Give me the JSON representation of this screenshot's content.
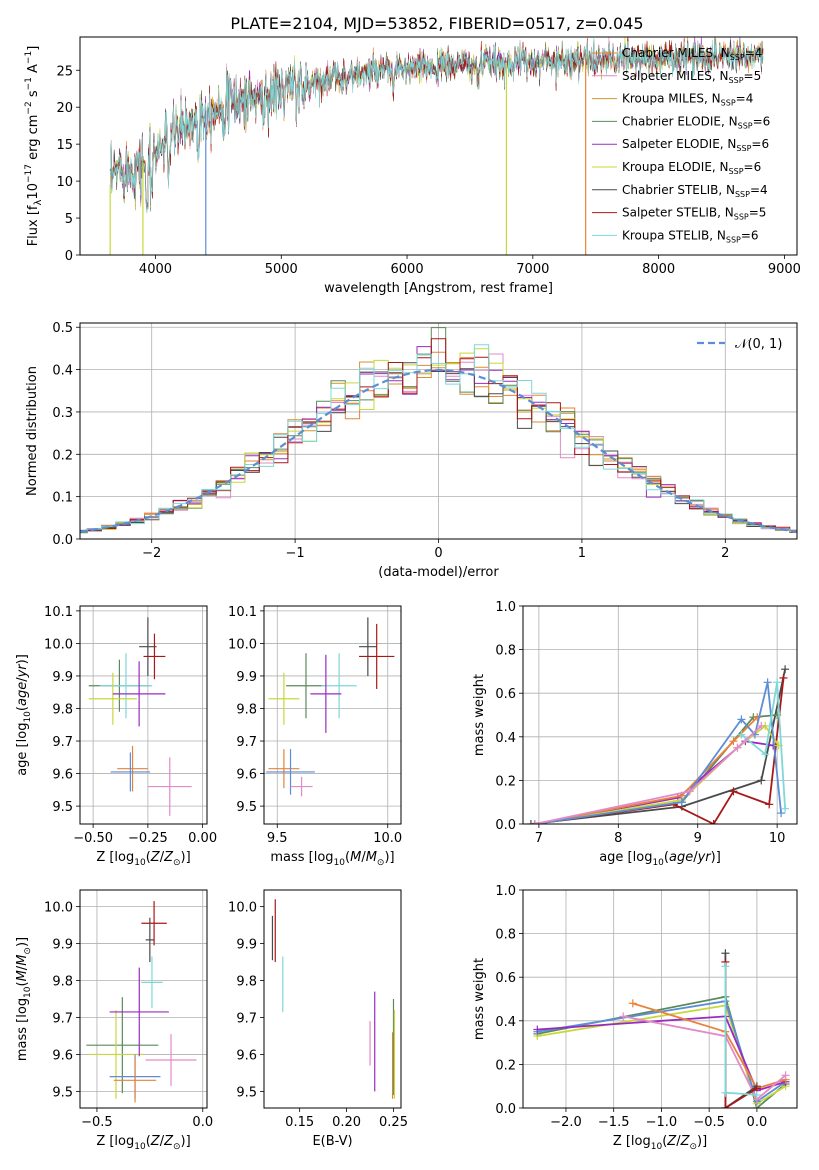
{
  "figure": {
    "title": "PLATE=2104, MJD=53852, FIBERID=0517, z=0.045"
  },
  "chart_data": [
    {
      "id": "spectrum",
      "type": "line",
      "xlabel": "wavelength [Angstrom, rest frame]",
      "ylabel_parts": [
        "Flux [f",
        "λ",
        "10",
        "−17",
        " erg cm",
        "−2",
        " s",
        "−1",
        " A",
        "−1",
        "]"
      ],
      "xlim": [
        3400,
        9100
      ],
      "ylim": [
        0,
        29.5
      ],
      "xticks": [
        4000,
        5000,
        6000,
        7000,
        8000,
        9000
      ],
      "yticks": [
        0,
        5,
        10,
        15,
        20,
        25
      ],
      "grid": false,
      "legend_position": "top-right",
      "data_range": [
        3640,
        8830
      ],
      "continuum": [
        [
          3640,
          9.5
        ],
        [
          3700,
          12
        ],
        [
          3800,
          11.5
        ],
        [
          3900,
          12.5
        ],
        [
          4000,
          14
        ],
        [
          4100,
          15.5
        ],
        [
          4200,
          17
        ],
        [
          4400,
          19.5
        ],
        [
          4700,
          21
        ],
        [
          5000,
          22.3
        ],
        [
          5300,
          23.6
        ],
        [
          5600,
          24.5
        ],
        [
          6000,
          25.2
        ],
        [
          6400,
          25.7
        ],
        [
          6800,
          26
        ],
        [
          7200,
          26.3
        ],
        [
          7600,
          26.5
        ],
        [
          8000,
          26.7
        ],
        [
          8400,
          26.9
        ],
        [
          8830,
          27.2
        ]
      ],
      "series": [
        {
          "name": "Chabrier MILES, N",
          "sub": "SSP",
          "suffix": "=4",
          "color": "#e8823a"
        },
        {
          "name": "Salpeter MILES, N",
          "sub": "SSP",
          "suffix": "=5",
          "color": "#e38ac8"
        },
        {
          "name": "Kroupa MILES, N",
          "sub": "SSP",
          "suffix": "=4",
          "color": "#d4922b"
        },
        {
          "name": "Chabrier ELODIE, N",
          "sub": "SSP",
          "suffix": "=6",
          "color": "#5a8a5a"
        },
        {
          "name": "Salpeter ELODIE, N",
          "sub": "SSP",
          "suffix": "=6",
          "color": "#9a2bc0"
        },
        {
          "name": "Kroupa ELODIE, N",
          "sub": "SSP",
          "suffix": "=6",
          "color": "#c8d83a"
        },
        {
          "name": "Chabrier STELIB, N",
          "sub": "SSP",
          "suffix": "=4",
          "color": "#4a4a4a"
        },
        {
          "name": "Salpeter STELIB, N",
          "sub": "SSP",
          "suffix": "=5",
          "color": "#a81818"
        },
        {
          "name": "Kroupa STELIB, N",
          "sub": "SSP",
          "suffix": "=6",
          "color": "#7fd8d8"
        }
      ]
    },
    {
      "id": "residuals",
      "type": "histogram",
      "xlabel": "(data-model)/error",
      "ylabel": "Normed distribution",
      "xlim": [
        -2.5,
        2.5
      ],
      "ylim": [
        0,
        0.51
      ],
      "xticks": [
        -2,
        -1,
        0,
        1,
        2
      ],
      "yticks": [
        0.0,
        0.1,
        0.2,
        0.3,
        0.4,
        0.5
      ],
      "grid": true,
      "legend_position": "top-right",
      "legend_label": "𝒩(0, 1)",
      "normal_color": "#5b8ed6"
    },
    {
      "id": "age_vs_Z",
      "type": "errorbar",
      "xlabel": "Z [log10(Z/Z⊙)]",
      "ylabel": "age  [log10(age/yr)]",
      "xlim": [
        -0.56,
        0.02
      ],
      "ylim": [
        9.445,
        10.115
      ],
      "xticks": [
        -0.5,
        -0.25,
        0.0
      ],
      "yticks": [
        9.5,
        9.6,
        9.7,
        9.8,
        9.9,
        10.0,
        10.1
      ],
      "grid": true,
      "points": [
        {
          "x": -0.25,
          "y": 9.99,
          "xerr": 0.04,
          "yerr": 0.09,
          "color": "#4a4a4a"
        },
        {
          "x": -0.22,
          "y": 9.96,
          "xerr": 0.05,
          "yerr": 0.07,
          "color": "#a81818"
        },
        {
          "x": -0.38,
          "y": 9.87,
          "xerr": 0.14,
          "yerr": 0.08,
          "color": "#5a8a5a"
        },
        {
          "x": -0.35,
          "y": 9.87,
          "xerr": 0.12,
          "yerr": 0.1,
          "color": "#7fd8d8"
        },
        {
          "x": -0.41,
          "y": 9.83,
          "xerr": 0.11,
          "yerr": 0.08,
          "color": "#c8d83a"
        },
        {
          "x": -0.29,
          "y": 9.845,
          "xerr": 0.12,
          "yerr": 0.1,
          "color": "#9a2bc0"
        },
        {
          "x": -0.32,
          "y": 9.615,
          "xerr": 0.07,
          "yerr": 0.07,
          "color": "#e8823a"
        },
        {
          "x": -0.33,
          "y": 9.605,
          "xerr": 0.09,
          "yerr": 0.06,
          "color": "#5b8ed6"
        },
        {
          "x": -0.15,
          "y": 9.56,
          "xerr": 0.1,
          "yerr": 0.09,
          "color": "#e38ac8"
        }
      ]
    },
    {
      "id": "age_vs_mass",
      "type": "errorbar",
      "xlabel": "mass [log10(M/M⊙)]",
      "ylabel": "",
      "xlim": [
        9.44,
        10.06
      ],
      "ylim": [
        9.445,
        10.115
      ],
      "xticks": [
        9.5,
        10.0
      ],
      "yticks": [
        9.5,
        9.6,
        9.7,
        9.8,
        9.9,
        10.0,
        10.1
      ],
      "grid": true,
      "points": [
        {
          "x": 9.91,
          "y": 9.99,
          "xerr": 0.04,
          "yerr": 0.09,
          "color": "#4a4a4a"
        },
        {
          "x": 9.95,
          "y": 9.96,
          "xerr": 0.08,
          "yerr": 0.1,
          "color": "#a81818"
        },
        {
          "x": 9.63,
          "y": 9.87,
          "xerr": 0.09,
          "yerr": 0.1,
          "color": "#5a8a5a"
        },
        {
          "x": 9.78,
          "y": 9.87,
          "xerr": 0.08,
          "yerr": 0.1,
          "color": "#7fd8d8"
        },
        {
          "x": 9.53,
          "y": 9.83,
          "xerr": 0.07,
          "yerr": 0.08,
          "color": "#c8d83a"
        },
        {
          "x": 9.72,
          "y": 9.845,
          "xerr": 0.07,
          "yerr": 0.12,
          "color": "#9a2bc0"
        },
        {
          "x": 9.53,
          "y": 9.615,
          "xerr": 0.07,
          "yerr": 0.06,
          "color": "#e8823a"
        },
        {
          "x": 9.56,
          "y": 9.605,
          "xerr": 0.11,
          "yerr": 0.07,
          "color": "#5b8ed6"
        },
        {
          "x": 9.61,
          "y": 9.56,
          "xerr": 0.05,
          "yerr": 0.03,
          "color": "#e38ac8"
        }
      ]
    },
    {
      "id": "weight_vs_age",
      "type": "line",
      "xlabel": "age  [log10(age/yr)]",
      "ylabel": "mass weight",
      "xlim": [
        6.8,
        10.25
      ],
      "ylim": [
        0,
        1
      ],
      "xticks": [
        7,
        8,
        9,
        10
      ],
      "yticks": [
        0.0,
        0.2,
        0.4,
        0.6,
        0.8,
        1.0
      ],
      "grid": true,
      "series": [
        {
          "color": "#4a4a4a",
          "x": [
            6.9,
            8.8,
            9.8,
            10.1
          ],
          "y": [
            0.0,
            0.08,
            0.2,
            0.71
          ]
        },
        {
          "color": "#a81818",
          "x": [
            6.95,
            8.7,
            9.2,
            9.45,
            9.9,
            10.08
          ],
          "y": [
            0.0,
            0.09,
            0.0,
            0.15,
            0.09,
            0.67
          ]
        },
        {
          "color": "#5a8a5a",
          "x": [
            6.95,
            8.8,
            9.7,
            10.0
          ],
          "y": [
            0.0,
            0.1,
            0.49,
            0.5
          ]
        },
        {
          "color": "#9a2bc0",
          "x": [
            6.95,
            8.75,
            9.6,
            9.95
          ],
          "y": [
            0.0,
            0.12,
            0.38,
            0.36
          ]
        },
        {
          "color": "#c8d83a",
          "x": [
            6.95,
            8.8,
            9.5,
            9.85,
            10.02
          ],
          "y": [
            0.0,
            0.11,
            0.35,
            0.45,
            0.36
          ]
        },
        {
          "color": "#e8823a",
          "x": [
            6.95,
            8.8,
            9.45,
            9.75
          ],
          "y": [
            0.0,
            0.13,
            0.38,
            0.49
          ]
        },
        {
          "color": "#5b8ed6",
          "x": [
            6.95,
            8.8,
            9.55,
            9.72,
            9.88,
            10.05
          ],
          "y": [
            0.0,
            0.1,
            0.48,
            0.41,
            0.65,
            0.05
          ]
        },
        {
          "color": "#7fd8d8",
          "x": [
            9.55,
            9.85,
            10.0,
            10.1
          ],
          "y": [
            0.41,
            0.32,
            0.65,
            0.07
          ]
        },
        {
          "color": "#e38ac8",
          "x": [
            6.95,
            8.9,
            9.5,
            9.8
          ],
          "y": [
            0.0,
            0.15,
            0.35,
            0.45
          ]
        }
      ]
    },
    {
      "id": "mass_vs_Z",
      "type": "errorbar",
      "xlabel": "Z [log10(Z/Z⊙)]",
      "ylabel": "mass [log10(M/M⊙)]",
      "xlim": [
        -0.58,
        0.02
      ],
      "ylim": [
        9.455,
        10.045
      ],
      "xticks": [
        -0.5,
        0.0
      ],
      "yticks": [
        9.5,
        9.6,
        9.7,
        9.8,
        9.9,
        10.0
      ],
      "grid": true,
      "points": [
        {
          "x": -0.25,
          "y": 9.91,
          "xerr": 0.02,
          "yerr": 0.06,
          "color": "#4a4a4a"
        },
        {
          "x": -0.23,
          "y": 9.955,
          "xerr": 0.06,
          "yerr": 0.06,
          "color": "#a81818"
        },
        {
          "x": -0.24,
          "y": 9.795,
          "xerr": 0.05,
          "yerr": 0.07,
          "color": "#7fd8d8"
        },
        {
          "x": -0.38,
          "y": 9.625,
          "xerr": 0.17,
          "yerr": 0.13,
          "color": "#5a8a5a"
        },
        {
          "x": -0.41,
          "y": 9.6,
          "xerr": 0.13,
          "yerr": 0.12,
          "color": "#c8d83a"
        },
        {
          "x": -0.3,
          "y": 9.715,
          "xerr": 0.14,
          "yerr": 0.12,
          "color": "#9a2bc0"
        },
        {
          "x": -0.32,
          "y": 9.54,
          "xerr": 0.12,
          "yerr": 0.06,
          "color": "#5b8ed6"
        },
        {
          "x": -0.32,
          "y": 9.53,
          "xerr": 0.1,
          "yerr": 0.06,
          "color": "#e8823a"
        },
        {
          "x": -0.15,
          "y": 9.585,
          "xerr": 0.12,
          "yerr": 0.07,
          "color": "#e38ac8"
        }
      ]
    },
    {
      "id": "mass_vs_ebv",
      "type": "errorbar",
      "xlabel": "E(B-V)",
      "ylabel": "",
      "xlim": [
        0.112,
        0.258
      ],
      "ylim": [
        9.455,
        10.045
      ],
      "xticks": [
        0.15,
        0.2,
        0.25
      ],
      "yticks": [
        9.5,
        9.6,
        9.7,
        9.8,
        9.9,
        10.0
      ],
      "grid": false,
      "points": [
        {
          "x": 0.121,
          "y": 9.915,
          "xerr": 0,
          "yerr": 0.06,
          "color": "#4a4a4a"
        },
        {
          "x": 0.124,
          "y": 9.935,
          "xerr": 0,
          "yerr": 0.085,
          "color": "#a81818"
        },
        {
          "x": 0.132,
          "y": 9.79,
          "xerr": 0,
          "yerr": 0.075,
          "color": "#7fd8d8"
        },
        {
          "x": 0.225,
          "y": 9.63,
          "xerr": 0,
          "yerr": 0.06,
          "color": "#e38ac8"
        },
        {
          "x": 0.23,
          "y": 9.635,
          "xerr": 0,
          "yerr": 0.135,
          "color": "#9a2bc0"
        },
        {
          "x": 0.249,
          "y": 9.57,
          "xerr": 0,
          "yerr": 0.09,
          "color": "#e8823a"
        },
        {
          "x": 0.25,
          "y": 9.62,
          "xerr": 0,
          "yerr": 0.13,
          "color": "#5a8a5a"
        },
        {
          "x": 0.251,
          "y": 9.6,
          "xerr": 0,
          "yerr": 0.12,
          "color": "#c8d83a"
        }
      ]
    },
    {
      "id": "weight_vs_Z",
      "type": "line",
      "xlabel": "Z [log10(Z/Z⊙)]",
      "ylabel": "mass weight",
      "xlim": [
        -2.45,
        0.42
      ],
      "ylim": [
        0,
        1
      ],
      "xticks": [
        -2.0,
        -1.5,
        -1.0,
        -0.5,
        0.0
      ],
      "yticks": [
        0.0,
        0.2,
        0.4,
        0.6,
        0.8,
        1.0
      ],
      "grid": true,
      "series": [
        {
          "color": "#5a8a5a",
          "x": [
            -2.3,
            -0.33,
            0.0,
            0.3
          ],
          "y": [
            0.34,
            0.51,
            0.0,
            0.11
          ]
        },
        {
          "color": "#c8d83a",
          "x": [
            -2.3,
            -0.33,
            0.0,
            0.3
          ],
          "y": [
            0.33,
            0.47,
            0.02,
            0.1
          ]
        },
        {
          "color": "#5b8ed6",
          "x": [
            -2.3,
            -0.33,
            0.0,
            0.3
          ],
          "y": [
            0.35,
            0.49,
            0.03,
            0.12
          ]
        },
        {
          "color": "#9a2bc0",
          "x": [
            -2.3,
            -0.33,
            0.0,
            0.3
          ],
          "y": [
            0.36,
            0.42,
            0.08,
            0.12
          ]
        },
        {
          "color": "#e8823a",
          "x": [
            -1.3,
            -0.33,
            0.0,
            0.3
          ],
          "y": [
            0.48,
            0.35,
            0.09,
            0.13
          ]
        },
        {
          "color": "#e38ac8",
          "x": [
            -1.4,
            -0.33,
            0.0,
            0.3
          ],
          "y": [
            0.42,
            0.33,
            0.04,
            0.15
          ]
        },
        {
          "color": "#4a4a4a",
          "x": [
            -0.33,
            -0.33,
            0.0
          ],
          "y": [
            0.71,
            0.0,
            0.1
          ]
        },
        {
          "color": "#a81818",
          "x": [
            -0.33,
            -0.33,
            0.0
          ],
          "y": [
            0.67,
            0.0,
            0.09
          ]
        },
        {
          "color": "#7fd8d8",
          "x": [
            -0.33,
            -0.33,
            0.0
          ],
          "y": [
            0.65,
            0.07,
            0.06
          ]
        }
      ]
    }
  ]
}
